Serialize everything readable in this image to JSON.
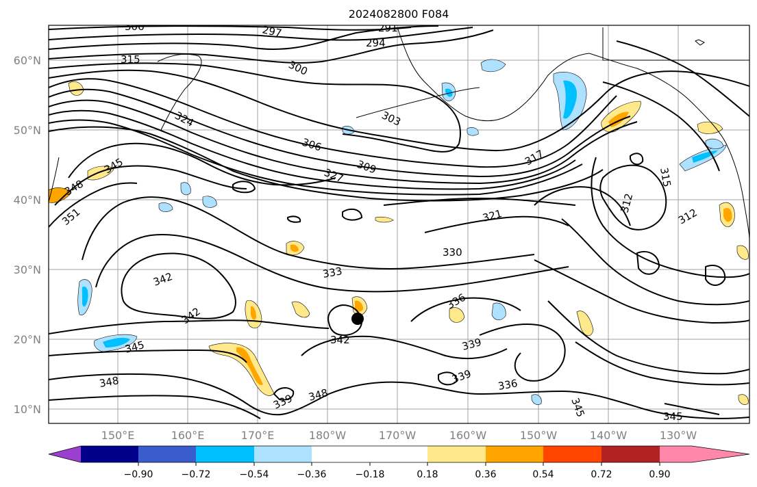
{
  "title": "2024082800 F084",
  "axes": {
    "lat_labels": [
      "60°N",
      "50°N",
      "40°N",
      "30°N",
      "20°N",
      "10°N"
    ],
    "lon_labels": [
      "150°E",
      "160°E",
      "170°E",
      "180°W",
      "170°W",
      "160°W",
      "150°W",
      "140°W",
      "130°W"
    ]
  },
  "contour_labels": [
    "306",
    "297",
    "291",
    "294",
    "315",
    "300",
    "324",
    "303",
    "306",
    "309",
    "327",
    "345",
    "348",
    "351",
    "317",
    "315",
    "312",
    "312",
    "321",
    "330",
    "333",
    "342",
    "342",
    "336",
    "342",
    "345",
    "339",
    "339",
    "336",
    "348",
    "339",
    "348",
    "345",
    "345"
  ],
  "colorbar": {
    "ticks": [
      "−0.90",
      "−0.72",
      "−0.54",
      "−0.36",
      "−0.18",
      "0.18",
      "0.36",
      "0.54",
      "0.72",
      "0.90"
    ],
    "colors": [
      "#9a3fd0",
      "#00008b",
      "#3a5ccc",
      "#00bfff",
      "#aee0ff",
      "#ffffff",
      "#ffe98a",
      "#ffa500",
      "#ff4500",
      "#b22222",
      "#ff88aa"
    ]
  },
  "map_colors": {
    "neg_light": "#aee0ff",
    "neg_mid": "#00bfff",
    "pos_light": "#ffe98a",
    "pos_mid": "#ffa500",
    "marker": "#000000"
  }
}
